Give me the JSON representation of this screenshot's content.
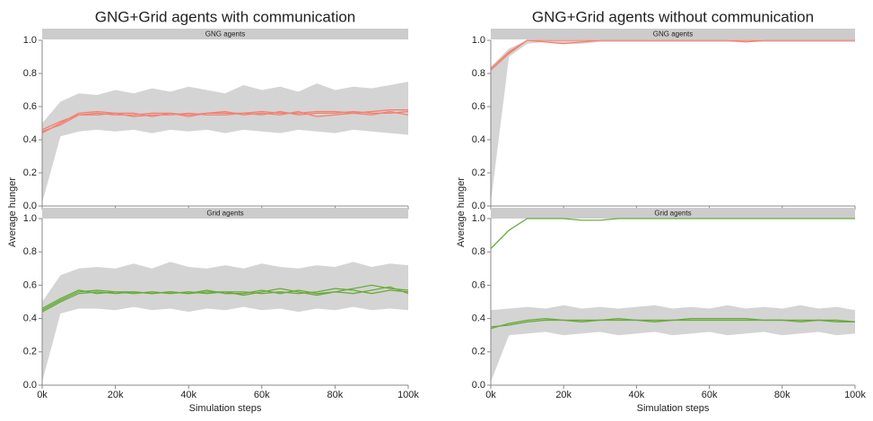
{
  "chart_data": [
    {
      "type": "line",
      "title": "GNG+Grid agents with communication",
      "ylabel": "Average hunger",
      "xlabel": "Simulation steps",
      "xlim": [
        0,
        100000
      ],
      "ylim": [
        0,
        1
      ],
      "xticks": [
        {
          "value": 0,
          "label": "0k"
        },
        {
          "value": 20000,
          "label": "20k"
        },
        {
          "value": 40000,
          "label": "40k"
        },
        {
          "value": 60000,
          "label": "60k"
        },
        {
          "value": 80000,
          "label": "80k"
        },
        {
          "value": 100000,
          "label": "100k"
        }
      ],
      "yticks": [
        {
          "value": 0,
          "label": "0.0"
        },
        {
          "value": 0.2,
          "label": "0.2"
        },
        {
          "value": 0.4,
          "label": "0.4"
        },
        {
          "value": 0.6,
          "label": "0.6"
        },
        {
          "value": 0.8,
          "label": "0.8"
        },
        {
          "value": 1,
          "label": "1.0"
        }
      ],
      "x": [
        0,
        5000,
        10000,
        15000,
        20000,
        25000,
        30000,
        35000,
        40000,
        45000,
        50000,
        55000,
        60000,
        65000,
        70000,
        75000,
        80000,
        85000,
        90000,
        95000,
        100000
      ],
      "panels": [
        {
          "strip": "GNG agents",
          "band": {
            "color": "#d4d4d4",
            "lower": [
              0.02,
              0.42,
              0.45,
              0.46,
              0.45,
              0.46,
              0.44,
              0.46,
              0.45,
              0.46,
              0.44,
              0.46,
              0.45,
              0.44,
              0.46,
              0.45,
              0.44,
              0.46,
              0.45,
              0.44,
              0.43
            ],
            "upper": [
              0.5,
              0.63,
              0.68,
              0.67,
              0.7,
              0.68,
              0.71,
              0.69,
              0.72,
              0.7,
              0.68,
              0.73,
              0.7,
              0.72,
              0.69,
              0.74,
              0.7,
              0.72,
              0.71,
              0.73,
              0.75
            ]
          },
          "series": [
            {
              "color": "#f4806f",
              "values": [
                0.45,
                0.49,
                0.55,
                0.56,
                0.55,
                0.55,
                0.56,
                0.56,
                0.55,
                0.56,
                0.56,
                0.56,
                0.57,
                0.56,
                0.56,
                0.57,
                0.57,
                0.56,
                0.57,
                0.58,
                0.58
              ]
            },
            {
              "color": "#f4806f",
              "values": [
                0.44,
                0.5,
                0.56,
                0.57,
                0.56,
                0.54,
                0.55,
                0.55,
                0.56,
                0.55,
                0.55,
                0.56,
                0.55,
                0.57,
                0.55,
                0.56,
                0.56,
                0.57,
                0.56,
                0.56,
                0.57
              ]
            },
            {
              "color": "#f4806f",
              "values": [
                0.46,
                0.51,
                0.55,
                0.55,
                0.56,
                0.56,
                0.54,
                0.56,
                0.54,
                0.56,
                0.57,
                0.55,
                0.56,
                0.55,
                0.57,
                0.54,
                0.55,
                0.56,
                0.55,
                0.57,
                0.55
              ]
            }
          ]
        },
        {
          "strip": "Grid agents",
          "band": {
            "color": "#d4d4d4",
            "lower": [
              0.02,
              0.43,
              0.46,
              0.46,
              0.45,
              0.47,
              0.45,
              0.46,
              0.44,
              0.46,
              0.45,
              0.47,
              0.45,
              0.46,
              0.44,
              0.46,
              0.45,
              0.47,
              0.45,
              0.46,
              0.45
            ],
            "upper": [
              0.5,
              0.66,
              0.7,
              0.71,
              0.7,
              0.73,
              0.7,
              0.74,
              0.71,
              0.7,
              0.72,
              0.7,
              0.73,
              0.71,
              0.7,
              0.72,
              0.71,
              0.74,
              0.71,
              0.73,
              0.72
            ]
          },
          "series": [
            {
              "color": "#6aaa3a",
              "values": [
                0.45,
                0.51,
                0.56,
                0.57,
                0.56,
                0.55,
                0.56,
                0.55,
                0.56,
                0.55,
                0.56,
                0.56,
                0.55,
                0.56,
                0.55,
                0.56,
                0.58,
                0.57,
                0.55,
                0.57,
                0.56
              ]
            },
            {
              "color": "#6aaa3a",
              "values": [
                0.44,
                0.5,
                0.55,
                0.56,
                0.55,
                0.56,
                0.55,
                0.56,
                0.55,
                0.57,
                0.55,
                0.55,
                0.57,
                0.55,
                0.57,
                0.55,
                0.56,
                0.58,
                0.6,
                0.58,
                0.57
              ]
            },
            {
              "color": "#6aaa3a",
              "values": [
                0.46,
                0.52,
                0.57,
                0.55,
                0.56,
                0.56,
                0.55,
                0.56,
                0.55,
                0.56,
                0.56,
                0.54,
                0.56,
                0.58,
                0.56,
                0.54,
                0.56,
                0.55,
                0.57,
                0.59,
                0.55
              ]
            }
          ]
        }
      ]
    },
    {
      "type": "line",
      "title": "GNG+Grid agents without communication",
      "ylabel": "Average hunger",
      "xlabel": "Simulation steps",
      "xlim": [
        0,
        100000
      ],
      "ylim": [
        0,
        1
      ],
      "xticks": [
        {
          "value": 0,
          "label": "0k"
        },
        {
          "value": 20000,
          "label": "20k"
        },
        {
          "value": 40000,
          "label": "40k"
        },
        {
          "value": 60000,
          "label": "60k"
        },
        {
          "value": 80000,
          "label": "80k"
        },
        {
          "value": 100000,
          "label": "100k"
        }
      ],
      "yticks": [
        {
          "value": 0,
          "label": "0.0"
        },
        {
          "value": 0.2,
          "label": "0.2"
        },
        {
          "value": 0.4,
          "label": "0.4"
        },
        {
          "value": 0.6,
          "label": "0.6"
        },
        {
          "value": 0.8,
          "label": "0.8"
        },
        {
          "value": 1,
          "label": "1.0"
        }
      ],
      "x": [
        0,
        5000,
        10000,
        15000,
        20000,
        25000,
        30000,
        35000,
        40000,
        45000,
        50000,
        55000,
        60000,
        65000,
        70000,
        75000,
        80000,
        85000,
        90000,
        95000,
        100000
      ],
      "panels": [
        {
          "strip": "GNG agents",
          "band": {
            "color": "#d4d4d4",
            "lower": [
              0.02,
              0.9,
              0.98,
              0.99,
              0.98,
              0.98,
              0.99,
              0.99,
              0.99,
              0.99,
              0.99,
              0.99,
              0.99,
              0.99,
              0.99,
              0.99,
              0.99,
              0.99,
              0.99,
              0.99,
              0.99
            ],
            "upper": [
              0.84,
              0.95,
              1,
              1,
              1,
              1,
              1,
              1,
              1,
              1,
              1,
              1,
              1,
              1,
              1,
              1,
              1,
              1,
              1,
              1,
              1
            ]
          },
          "series": [
            {
              "color": "#f4806f",
              "values": [
                0.82,
                0.92,
                1,
                1,
                1,
                1,
                1,
                1,
                1,
                1,
                1,
                1,
                1,
                1,
                1,
                1,
                1,
                1,
                1,
                1,
                1
              ]
            },
            {
              "color": "#f4806f",
              "values": [
                0.83,
                0.93,
                1,
                0.99,
                0.98,
                0.99,
                1,
                1,
                1,
                1,
                1,
                1,
                1,
                1,
                0.99,
                1,
                1,
                1,
                1,
                1,
                1
              ]
            }
          ]
        },
        {
          "strip": "Grid agents",
          "band": {
            "color": "#d4d4d4",
            "lower": [
              0.02,
              0.3,
              0.31,
              0.32,
              0.3,
              0.31,
              0.32,
              0.3,
              0.31,
              0.32,
              0.3,
              0.31,
              0.32,
              0.3,
              0.31,
              0.32,
              0.3,
              0.31,
              0.32,
              0.3,
              0.31
            ],
            "upper": [
              0.45,
              0.46,
              0.47,
              0.46,
              0.48,
              0.46,
              0.47,
              0.46,
              0.47,
              0.48,
              0.46,
              0.47,
              0.46,
              0.48,
              0.46,
              0.47,
              0.46,
              0.48,
              0.46,
              0.47,
              0.45
            ]
          },
          "series": [
            {
              "color": "#6aaa3a",
              "values": [
                0.82,
                0.93,
                1,
                1,
                1,
                0.99,
                0.99,
                1,
                1,
                1,
                1,
                1,
                1,
                1,
                1,
                1,
                1,
                1,
                1,
                1,
                1
              ]
            },
            {
              "color": "#6aaa3a",
              "values": [
                0.34,
                0.37,
                0.39,
                0.4,
                0.39,
                0.39,
                0.39,
                0.4,
                0.39,
                0.39,
                0.39,
                0.4,
                0.4,
                0.4,
                0.4,
                0.39,
                0.39,
                0.39,
                0.39,
                0.39,
                0.38
              ]
            },
            {
              "color": "#6aaa3a",
              "values": [
                0.35,
                0.36,
                0.38,
                0.39,
                0.39,
                0.38,
                0.39,
                0.39,
                0.39,
                0.38,
                0.39,
                0.39,
                0.39,
                0.39,
                0.39,
                0.39,
                0.39,
                0.38,
                0.39,
                0.38,
                0.38
              ]
            }
          ]
        }
      ]
    }
  ]
}
